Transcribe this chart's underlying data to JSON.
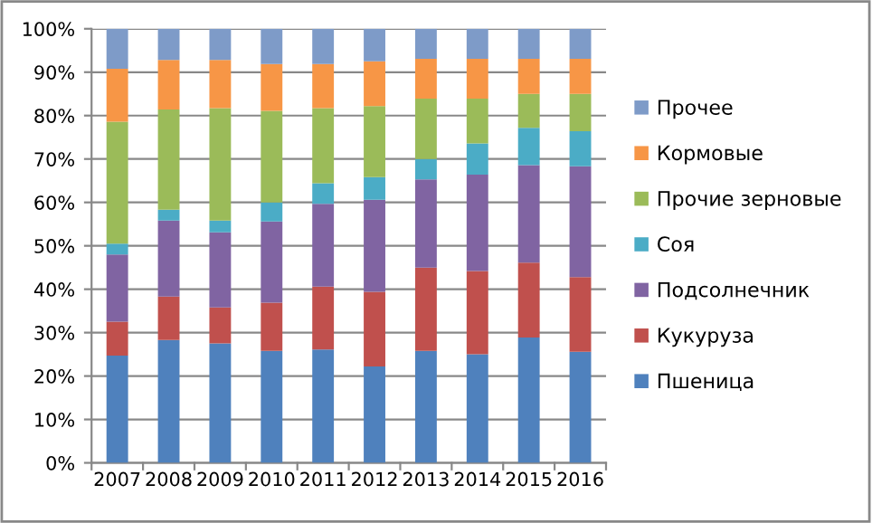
{
  "chart_data": {
    "type": "bar",
    "stacked": true,
    "categories": [
      "2007",
      "2008",
      "2009",
      "2010",
      "2011",
      "2012",
      "2013",
      "2014",
      "2015",
      "2016"
    ],
    "series": [
      {
        "name": "Пшеница",
        "color": "#4f81bd",
        "values": [
          24.7,
          28.3,
          27.5,
          25.8,
          26.1,
          22.2,
          25.8,
          25,
          28.9,
          25.6
        ]
      },
      {
        "name": "Кукуруза",
        "color": "#c0504d",
        "values": [
          7.8,
          10,
          8.3,
          11.1,
          14.5,
          17.2,
          19.2,
          19.2,
          17.2,
          17.2
        ]
      },
      {
        "name": "Подсолнечник",
        "color": "#8064a2",
        "values": [
          15.5,
          17.5,
          17.3,
          18.7,
          19.1,
          21.2,
          20.3,
          22.2,
          22.5,
          25.5
        ]
      },
      {
        "name": "Соя",
        "color": "#4bacc6",
        "values": [
          2.5,
          2.5,
          2.7,
          4.4,
          4.7,
          5.2,
          4.7,
          7.2,
          8.6,
          8.1
        ]
      },
      {
        "name": "Прочие зерновые",
        "color": "#9bbb59",
        "values": [
          28.1,
          23.1,
          25.9,
          21.1,
          17.3,
          16.4,
          13.9,
          10.3,
          7.8,
          8.6
        ]
      },
      {
        "name": "Кормовые",
        "color": "#f79646",
        "values": [
          12.2,
          11.4,
          11.1,
          10.8,
          10.2,
          10.3,
          9.2,
          9.2,
          8.1,
          8.1
        ]
      },
      {
        "name": "Прочее",
        "color": "#7e9bc8",
        "values": [
          9.2,
          7.2,
          7.2,
          8.1,
          8.1,
          7.5,
          6.9,
          6.9,
          6.9,
          6.9
        ]
      }
    ],
    "ylim": [
      0,
      100
    ],
    "yticks": [
      {
        "value": 0,
        "label": "0%"
      },
      {
        "value": 10,
        "label": "10%"
      },
      {
        "value": 20,
        "label": "20%"
      },
      {
        "value": 30,
        "label": "30%"
      },
      {
        "value": 40,
        "label": "40%"
      },
      {
        "value": 50,
        "label": "50%"
      },
      {
        "value": 60,
        "label": "60%"
      },
      {
        "value": 70,
        "label": "70%"
      },
      {
        "value": 80,
        "label": "80%"
      },
      {
        "value": 90,
        "label": "90%"
      },
      {
        "value": 100,
        "label": "100%"
      }
    ],
    "grid": "y",
    "legend": "right"
  }
}
